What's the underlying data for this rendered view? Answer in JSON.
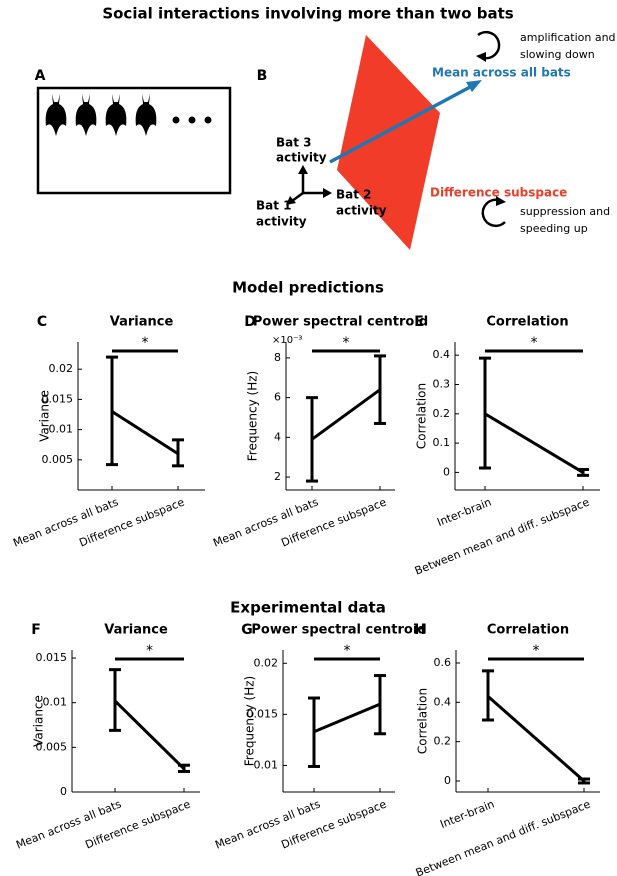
{
  "title": "Social interactions involving more than two bats",
  "panel_a": {
    "label": "A"
  },
  "panel_b": {
    "label": "B",
    "mean_label": "Mean across all bats",
    "diff_label": "Difference subspace",
    "mean_effect": [
      "amplification and",
      "slowing down"
    ],
    "diff_effect": [
      "suppression and",
      "speeding up"
    ],
    "bat3": [
      "Bat 3",
      "activity"
    ],
    "bat2": [
      "Bat 2",
      "activity"
    ],
    "bat1": [
      "Bat 1",
      "activity"
    ]
  },
  "sections": [
    "Model predictions",
    "Experimental data"
  ],
  "chart_data": [
    {
      "type": "errorbar",
      "panel": "C",
      "title": "Variance",
      "ylabel": "Variance",
      "categories": [
        "Mean across all bats",
        "Difference subspace"
      ],
      "values": [
        0.013,
        0.006
      ],
      "lower": [
        0.0042,
        0.004
      ],
      "upper": [
        0.022,
        0.0083
      ],
      "annotation": "*",
      "ylim": [
        0,
        0.0245
      ],
      "yticks": [
        0.005,
        0.01,
        0.015,
        0.02
      ],
      "color": "#000000"
    },
    {
      "type": "errorbar",
      "panel": "D",
      "title": "Power spectral centroid",
      "ylabel": "Frequency (Hz)",
      "yscale_label": "×10⁻³",
      "categories": [
        "Mean across all bats",
        "Difference subspace"
      ],
      "values": [
        3.9,
        6.4
      ],
      "lower": [
        1.8,
        4.7
      ],
      "upper": [
        6.0,
        8.1
      ],
      "annotation": "*",
      "ylim": [
        1.35,
        8.8
      ],
      "yticks": [
        2,
        4,
        6,
        8
      ],
      "color": "#000000"
    },
    {
      "type": "errorbar",
      "panel": "E",
      "title": "Correlation",
      "ylabel": "Correlation",
      "categories": [
        "Inter-brain",
        "Between mean and diff. subspace"
      ],
      "values": [
        0.2,
        0.0
      ],
      "lower": [
        0.015,
        -0.01
      ],
      "upper": [
        0.39,
        0.01
      ],
      "annotation": "*",
      "ylim": [
        -0.06,
        0.445
      ],
      "yticks": [
        0,
        0.1,
        0.2,
        0.3,
        0.4
      ],
      "color": "#000000"
    },
    {
      "type": "errorbar",
      "panel": "F",
      "title": "Variance",
      "ylabel": "Variance",
      "categories": [
        "Mean across all bats",
        "Difference subspace"
      ],
      "values": [
        0.0102,
        0.0026
      ],
      "lower": [
        0.0069,
        0.0023
      ],
      "upper": [
        0.0137,
        0.003
      ],
      "annotation": "*",
      "ylim": [
        0,
        0.0159
      ],
      "yticks": [
        0,
        0.005,
        0.01,
        0.015
      ],
      "color": "#000000"
    },
    {
      "type": "errorbar",
      "panel": "G",
      "title": "Power spectral centroid",
      "ylabel": "Frequency (Hz)",
      "categories": [
        "Mean across all bats",
        "Difference subspace"
      ],
      "values": [
        0.0133,
        0.016
      ],
      "lower": [
        0.0099,
        0.0131
      ],
      "upper": [
        0.0166,
        0.0188
      ],
      "annotation": "*",
      "ylim": [
        0.0074,
        0.0213
      ],
      "yticks": [
        0.01,
        0.015,
        0.02
      ],
      "color": "#000000"
    },
    {
      "type": "errorbar",
      "panel": "H",
      "title": "Correlation",
      "ylabel": "Correlation",
      "categories": [
        "Inter-brain",
        "Between mean and diff. subspace"
      ],
      "values": [
        0.43,
        0.0
      ],
      "lower": [
        0.31,
        -0.01
      ],
      "upper": [
        0.56,
        0.01
      ],
      "annotation": "*",
      "ylim": [
        -0.056,
        0.666
      ],
      "yticks": [
        0,
        0.2,
        0.4,
        0.6
      ],
      "color": "#000000"
    }
  ]
}
